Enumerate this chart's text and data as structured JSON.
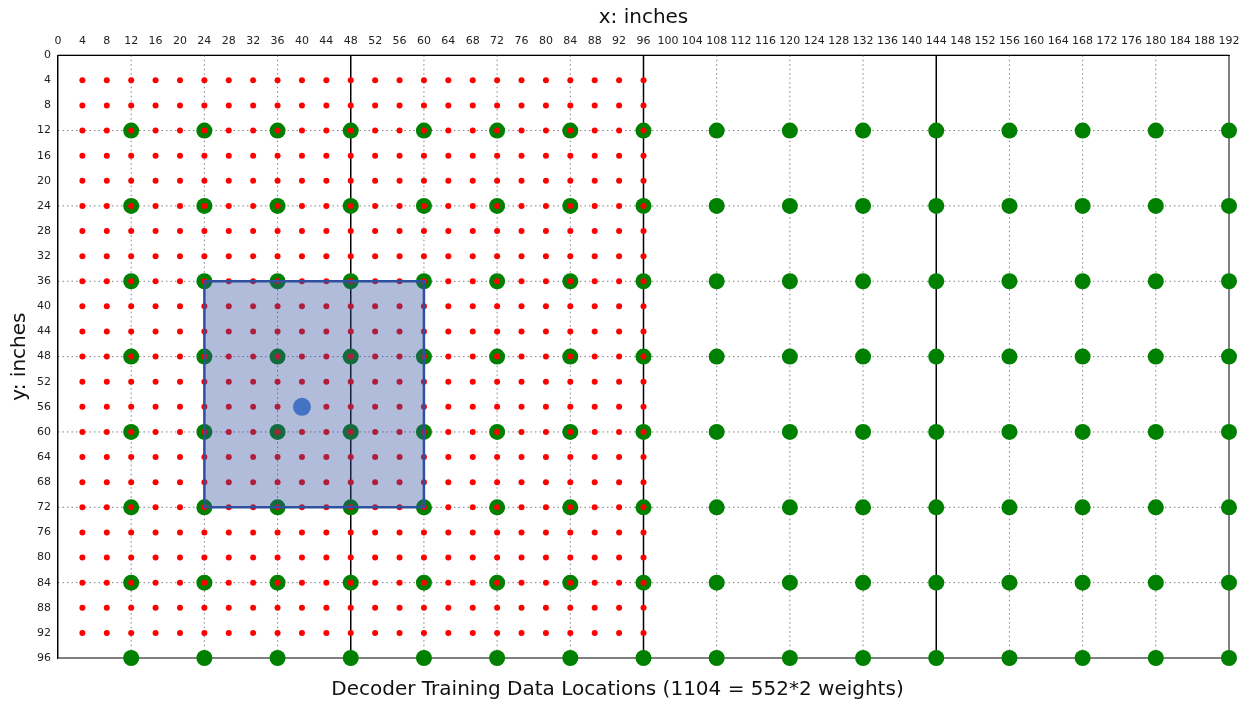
{
  "chart_data": {
    "type": "scatter",
    "title": "Decoder Training Data Locations (1104 = 552*2 weights)",
    "xlabel": "x: inches",
    "ylabel": "y: inches",
    "xlim": [
      0,
      192
    ],
    "ylim": [
      96,
      0
    ],
    "xticks": [
      0,
      4,
      8,
      12,
      16,
      20,
      24,
      28,
      32,
      36,
      40,
      44,
      48,
      52,
      56,
      60,
      64,
      68,
      72,
      76,
      80,
      84,
      88,
      92,
      96,
      100,
      104,
      108,
      112,
      116,
      120,
      124,
      128,
      132,
      136,
      140,
      144,
      148,
      152,
      156,
      160,
      164,
      168,
      172,
      176,
      180,
      184,
      188,
      192
    ],
    "yticks": [
      0,
      4,
      8,
      12,
      16,
      20,
      24,
      28,
      32,
      36,
      40,
      44,
      48,
      52,
      56,
      60,
      64,
      68,
      72,
      76,
      80,
      84,
      88,
      92,
      96
    ],
    "grid": false,
    "legend": false,
    "marker": "circle",
    "ref_lines": [
      {
        "axis": "x",
        "value": 12,
        "color": "#808080",
        "line_style": "dotted"
      },
      {
        "axis": "x",
        "value": 24,
        "color": "#808080",
        "line_style": "dotted"
      },
      {
        "axis": "x",
        "value": 36,
        "color": "#808080",
        "line_style": "dotted"
      },
      {
        "axis": "x",
        "value": 60,
        "color": "#808080",
        "line_style": "dotted"
      },
      {
        "axis": "x",
        "value": 72,
        "color": "#808080",
        "line_style": "dotted"
      },
      {
        "axis": "x",
        "value": 84,
        "color": "#808080",
        "line_style": "dotted"
      },
      {
        "axis": "x",
        "value": 108,
        "color": "#808080",
        "line_style": "dotted"
      },
      {
        "axis": "x",
        "value": 120,
        "color": "#808080",
        "line_style": "dotted"
      },
      {
        "axis": "x",
        "value": 132,
        "color": "#808080",
        "line_style": "dotted"
      },
      {
        "axis": "x",
        "value": 156,
        "color": "#808080",
        "line_style": "dotted"
      },
      {
        "axis": "x",
        "value": 168,
        "color": "#808080",
        "line_style": "dotted"
      },
      {
        "axis": "x",
        "value": 180,
        "color": "#808080",
        "line_style": "dotted"
      },
      {
        "axis": "y",
        "value": 12,
        "color": "#808080",
        "line_style": "dotted"
      },
      {
        "axis": "y",
        "value": 24,
        "color": "#808080",
        "line_style": "dotted"
      },
      {
        "axis": "y",
        "value": 36,
        "color": "#808080",
        "line_style": "dotted"
      },
      {
        "axis": "y",
        "value": 48,
        "color": "#808080",
        "line_style": "dotted"
      },
      {
        "axis": "y",
        "value": 60,
        "color": "#808080",
        "line_style": "dotted"
      },
      {
        "axis": "y",
        "value": 72,
        "color": "#808080",
        "line_style": "dotted"
      },
      {
        "axis": "y",
        "value": 84,
        "color": "#808080",
        "line_style": "dotted"
      },
      {
        "axis": "x",
        "value": 48,
        "color": "#000000",
        "line_style": "solid"
      },
      {
        "axis": "x",
        "value": 96,
        "color": "#000000",
        "line_style": "solid"
      },
      {
        "axis": "x",
        "value": 144,
        "color": "#000000",
        "line_style": "solid"
      }
    ],
    "series": [
      {
        "color": "#ff0000",
        "x": [
          4,
          8,
          12,
          16,
          20,
          24,
          28,
          32,
          36,
          40,
          44,
          48,
          52,
          56,
          60,
          64,
          68,
          72,
          76,
          80,
          84,
          88,
          92,
          96,
          4,
          8,
          12,
          16,
          20,
          24,
          28,
          32,
          36,
          40,
          44,
          48,
          52,
          56,
          60,
          64,
          68,
          72,
          76,
          80,
          84,
          88,
          92,
          96,
          4,
          8,
          12,
          16,
          20,
          24,
          28,
          32,
          36,
          40,
          44,
          48,
          52,
          56,
          60,
          64,
          68,
          72,
          76,
          80,
          84,
          88,
          92,
          96,
          4,
          8,
          12,
          16,
          20,
          24,
          28,
          32,
          36,
          40,
          44,
          48,
          52,
          56,
          60,
          64,
          68,
          72,
          76,
          80,
          84,
          88,
          92,
          96,
          4,
          8,
          12,
          16,
          20,
          24,
          28,
          32,
          36,
          40,
          44,
          48,
          52,
          56,
          60,
          64,
          68,
          72,
          76,
          80,
          84,
          88,
          92,
          96,
          4,
          8,
          12,
          16,
          20,
          24,
          28,
          32,
          36,
          40,
          44,
          48,
          52,
          56,
          60,
          64,
          68,
          72,
          76,
          80,
          84,
          88,
          92,
          96,
          4,
          8,
          12,
          16,
          20,
          24,
          28,
          32,
          36,
          40,
          44,
          48,
          52,
          56,
          60,
          64,
          68,
          72,
          76,
          80,
          84,
          88,
          92,
          96,
          4,
          8,
          12,
          16,
          20,
          24,
          28,
          32,
          36,
          40,
          44,
          48,
          52,
          56,
          60,
          64,
          68,
          72,
          76,
          80,
          84,
          88,
          92,
          96,
          4,
          8,
          12,
          16,
          20,
          24,
          28,
          32,
          36,
          40,
          44,
          48,
          52,
          56,
          60,
          64,
          68,
          72,
          76,
          80,
          84,
          88,
          92,
          96,
          4,
          8,
          12,
          16,
          20,
          24,
          28,
          32,
          36,
          40,
          44,
          48,
          52,
          56,
          60,
          64,
          68,
          72,
          76,
          80,
          84,
          88,
          92,
          96,
          4,
          8,
          12,
          16,
          20,
          24,
          28,
          32,
          36,
          40,
          44,
          48,
          52,
          56,
          60,
          64,
          68,
          72,
          76,
          80,
          84,
          88,
          92,
          96,
          4,
          8,
          12,
          16,
          20,
          24,
          28,
          32,
          36,
          40,
          44,
          48,
          52,
          56,
          60,
          64,
          68,
          72,
          76,
          80,
          84,
          88,
          92,
          96,
          4,
          8,
          12,
          16,
          20,
          24,
          28,
          32,
          36,
          40,
          44,
          48,
          52,
          56,
          60,
          64,
          68,
          72,
          76,
          80,
          84,
          88,
          92,
          96,
          4,
          8,
          12,
          16,
          20,
          24,
          28,
          32,
          36,
          40,
          44,
          48,
          52,
          56,
          60,
          64,
          68,
          72,
          76,
          80,
          84,
          88,
          92,
          96,
          4,
          8,
          12,
          16,
          20,
          24,
          28,
          32,
          36,
          40,
          44,
          48,
          52,
          56,
          60,
          64,
          68,
          72,
          76,
          80,
          84,
          88,
          92,
          96,
          4,
          8,
          12,
          16,
          20,
          24,
          28,
          32,
          36,
          40,
          44,
          48,
          52,
          56,
          60,
          64,
          68,
          72,
          76,
          80,
          84,
          88,
          92,
          96,
          4,
          8,
          12,
          16,
          20,
          24,
          28,
          32,
          36,
          40,
          44,
          48,
          52,
          56,
          60,
          64,
          68,
          72,
          76,
          80,
          84,
          88,
          92,
          96,
          4,
          8,
          12,
          16,
          20,
          24,
          28,
          32,
          36,
          40,
          44,
          48,
          52,
          56,
          60,
          64,
          68,
          72,
          76,
          80,
          84,
          88,
          92,
          96,
          4,
          8,
          12,
          16,
          20,
          24,
          28,
          32,
          36,
          40,
          44,
          48,
          52,
          56,
          60,
          64,
          68,
          72,
          76,
          80,
          84,
          88,
          92,
          96,
          4,
          8,
          12,
          16,
          20,
          24,
          28,
          32,
          36,
          40,
          44,
          48,
          52,
          56,
          60,
          64,
          68,
          72,
          76,
          80,
          84,
          88,
          92,
          96,
          4,
          8,
          12,
          16,
          20,
          24,
          28,
          32,
          36,
          40,
          44,
          48,
          52,
          56,
          60,
          64,
          68,
          72,
          76,
          80,
          84,
          88,
          92,
          96,
          4,
          8,
          12,
          16,
          20,
          24,
          28,
          32,
          36,
          40,
          44,
          48,
          52,
          56,
          60,
          64,
          68,
          72,
          76,
          80,
          84,
          88,
          92,
          96,
          4,
          8,
          12,
          16,
          20,
          24,
          28,
          32,
          36,
          40,
          44,
          48,
          52,
          56,
          60,
          64,
          68,
          72,
          76,
          80,
          84,
          88,
          92,
          96
        ],
        "values": [
          4,
          4,
          4,
          4,
          4,
          4,
          4,
          4,
          4,
          4,
          4,
          4,
          4,
          4,
          4,
          4,
          4,
          4,
          4,
          4,
          4,
          4,
          4,
          4,
          8,
          8,
          8,
          8,
          8,
          8,
          8,
          8,
          8,
          8,
          8,
          8,
          8,
          8,
          8,
          8,
          8,
          8,
          8,
          8,
          8,
          8,
          8,
          8,
          12,
          12,
          12,
          12,
          12,
          12,
          12,
          12,
          12,
          12,
          12,
          12,
          12,
          12,
          12,
          12,
          12,
          12,
          12,
          12,
          12,
          12,
          12,
          12,
          16,
          16,
          16,
          16,
          16,
          16,
          16,
          16,
          16,
          16,
          16,
          16,
          16,
          16,
          16,
          16,
          16,
          16,
          16,
          16,
          16,
          16,
          16,
          16,
          20,
          20,
          20,
          20,
          20,
          20,
          20,
          20,
          20,
          20,
          20,
          20,
          20,
          20,
          20,
          20,
          20,
          20,
          20,
          20,
          20,
          20,
          20,
          20,
          24,
          24,
          24,
          24,
          24,
          24,
          24,
          24,
          24,
          24,
          24,
          24,
          24,
          24,
          24,
          24,
          24,
          24,
          24,
          24,
          24,
          24,
          24,
          24,
          28,
          28,
          28,
          28,
          28,
          28,
          28,
          28,
          28,
          28,
          28,
          28,
          28,
          28,
          28,
          28,
          28,
          28,
          28,
          28,
          28,
          28,
          28,
          28,
          32,
          32,
          32,
          32,
          32,
          32,
          32,
          32,
          32,
          32,
          32,
          32,
          32,
          32,
          32,
          32,
          32,
          32,
          32,
          32,
          32,
          32,
          32,
          32,
          36,
          36,
          36,
          36,
          36,
          36,
          36,
          36,
          36,
          36,
          36,
          36,
          36,
          36,
          36,
          36,
          36,
          36,
          36,
          36,
          36,
          36,
          36,
          36,
          40,
          40,
          40,
          40,
          40,
          40,
          40,
          40,
          40,
          40,
          40,
          40,
          40,
          40,
          40,
          40,
          40,
          40,
          40,
          40,
          40,
          40,
          40,
          40,
          44,
          44,
          44,
          44,
          44,
          44,
          44,
          44,
          44,
          44,
          44,
          44,
          44,
          44,
          44,
          44,
          44,
          44,
          44,
          44,
          44,
          44,
          44,
          44,
          48,
          48,
          48,
          48,
          48,
          48,
          48,
          48,
          48,
          48,
          48,
          48,
          48,
          48,
          48,
          48,
          48,
          48,
          48,
          48,
          48,
          48,
          48,
          48,
          52,
          52,
          52,
          52,
          52,
          52,
          52,
          52,
          52,
          52,
          52,
          52,
          52,
          52,
          52,
          52,
          52,
          52,
          52,
          52,
          52,
          52,
          52,
          52,
          56,
          56,
          56,
          56,
          56,
          56,
          56,
          56,
          56,
          null,
          56,
          56,
          56,
          56,
          56,
          56,
          56,
          56,
          56,
          56,
          56,
          56,
          56,
          56,
          60,
          60,
          60,
          60,
          60,
          60,
          60,
          60,
          60,
          60,
          60,
          60,
          60,
          60,
          60,
          60,
          60,
          60,
          60,
          60,
          60,
          60,
          60,
          60,
          64,
          64,
          64,
          64,
          64,
          64,
          64,
          64,
          64,
          64,
          64,
          64,
          64,
          64,
          64,
          64,
          64,
          64,
          64,
          64,
          64,
          64,
          64,
          64,
          68,
          68,
          68,
          68,
          68,
          68,
          68,
          68,
          68,
          68,
          68,
          68,
          68,
          68,
          68,
          68,
          68,
          68,
          68,
          68,
          68,
          68,
          68,
          68,
          72,
          72,
          72,
          72,
          72,
          72,
          72,
          72,
          72,
          72,
          72,
          72,
          72,
          72,
          72,
          72,
          72,
          72,
          72,
          72,
          72,
          72,
          72,
          72,
          76,
          76,
          76,
          76,
          76,
          76,
          76,
          76,
          76,
          76,
          76,
          76,
          76,
          76,
          76,
          76,
          76,
          76,
          76,
          76,
          76,
          76,
          76,
          76,
          80,
          80,
          80,
          80,
          80,
          80,
          80,
          80,
          80,
          80,
          80,
          80,
          80,
          80,
          80,
          80,
          80,
          80,
          80,
          80,
          80,
          80,
          80,
          80,
          84,
          84,
          84,
          84,
          84,
          84,
          84,
          84,
          84,
          84,
          84,
          84,
          84,
          84,
          84,
          84,
          84,
          84,
          84,
          84,
          84,
          84,
          84,
          84,
          88,
          88,
          88,
          88,
          88,
          88,
          88,
          88,
          88,
          88,
          88,
          88,
          88,
          88,
          88,
          88,
          88,
          88,
          88,
          88,
          88,
          88,
          88,
          88,
          92,
          92,
          92,
          92,
          92,
          92,
          92,
          92,
          92,
          92,
          92,
          92,
          92,
          92,
          92,
          92,
          92,
          92,
          92,
          92,
          92,
          92,
          92,
          92
        ]
      },
      {
        "color": "#008000",
        "x": [
          12,
          24,
          36,
          48,
          60,
          72,
          84,
          96,
          108,
          120,
          132,
          144,
          156,
          168,
          180,
          192,
          12,
          24,
          36,
          48,
          60,
          72,
          84,
          96,
          108,
          120,
          132,
          144,
          156,
          168,
          180,
          192,
          12,
          24,
          36,
          48,
          60,
          72,
          84,
          96,
          108,
          120,
          132,
          144,
          156,
          168,
          180,
          192,
          12,
          24,
          36,
          48,
          60,
          72,
          84,
          96,
          108,
          120,
          132,
          144,
          156,
          168,
          180,
          192,
          12,
          24,
          36,
          48,
          60,
          72,
          84,
          96,
          108,
          120,
          132,
          144,
          156,
          168,
          180,
          192,
          12,
          24,
          36,
          48,
          60,
          72,
          84,
          96,
          108,
          120,
          132,
          144,
          156,
          168,
          180,
          192,
          12,
          24,
          36,
          48,
          60,
          72,
          84,
          96,
          108,
          120,
          132,
          144,
          156,
          168,
          180,
          192,
          12,
          24,
          36,
          48,
          60,
          72,
          84,
          96,
          108,
          120,
          132,
          144,
          156,
          168,
          180,
          192
        ],
        "values": [
          12,
          12,
          12,
          12,
          12,
          12,
          12,
          12,
          12,
          12,
          12,
          12,
          12,
          12,
          12,
          12,
          24,
          24,
          24,
          24,
          24,
          24,
          24,
          24,
          24,
          24,
          24,
          24,
          24,
          24,
          24,
          24,
          36,
          36,
          36,
          36,
          36,
          36,
          36,
          36,
          36,
          36,
          36,
          36,
          36,
          36,
          36,
          36,
          48,
          48,
          48,
          48,
          48,
          48,
          48,
          48,
          48,
          48,
          48,
          48,
          48,
          48,
          48,
          48,
          60,
          60,
          60,
          60,
          60,
          60,
          60,
          60,
          60,
          60,
          60,
          60,
          60,
          60,
          60,
          60,
          72,
          72,
          72,
          72,
          72,
          72,
          72,
          72,
          72,
          72,
          72,
          72,
          72,
          72,
          72,
          72,
          84,
          84,
          84,
          84,
          84,
          84,
          84,
          84,
          84,
          84,
          84,
          84,
          84,
          84,
          84,
          84,
          96,
          96,
          96,
          96,
          96,
          96,
          96,
          96,
          96,
          96,
          96,
          96,
          96,
          96,
          96,
          96
        ]
      },
      {
        "type": "area",
        "marker": "none",
        "color": "#2f4f9f",
        "x": [
          24,
          60,
          60,
          24,
          24
        ],
        "values": [
          36,
          36,
          72,
          72,
          36
        ]
      },
      {
        "color": "#4472c4",
        "x": [
          40
        ],
        "values": [
          56
        ]
      }
    ]
  }
}
